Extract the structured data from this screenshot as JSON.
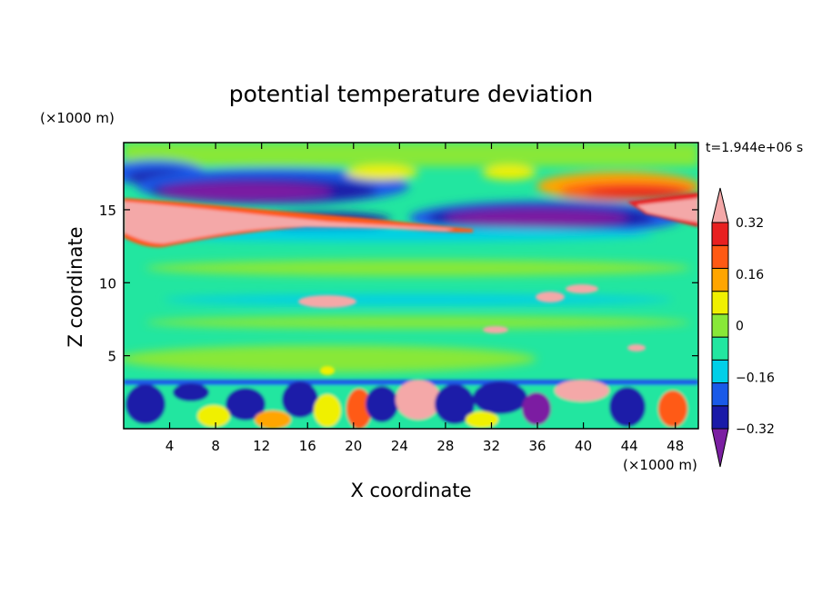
{
  "chart_data": {
    "type": "heatmap",
    "title": "potential temperature deviation",
    "time_label": "t=1.944e+06 s",
    "xlabel": "X coordinate",
    "ylabel": "Z coordinate",
    "x_unit": "(×1000 m)",
    "y_unit": "(×1000 m)",
    "xlim": [
      0,
      50
    ],
    "ylim": [
      0,
      19.6
    ],
    "x_ticks": [
      4,
      8,
      12,
      16,
      20,
      24,
      28,
      32,
      36,
      40,
      44,
      48
    ],
    "y_ticks": [
      5,
      10,
      15
    ],
    "colorbar": {
      "levels": [
        -0.4,
        -0.32,
        -0.24,
        -0.16,
        -0.08,
        0,
        0.08,
        0.16,
        0.24,
        0.32,
        0.4
      ],
      "tick_values": [
        0.32,
        0.16,
        0,
        -0.16,
        -0.32
      ],
      "tick_labels": [
        "0.32",
        "0.16",
        "0",
        "−0.16",
        "−0.32"
      ],
      "colors": [
        "#7b1fa2",
        "#1a1aa8",
        "#1a5ae8",
        "#00cfe8",
        "#22e6a0",
        "#88e838",
        "#f0f000",
        "#ffa500",
        "#ff5a14",
        "#e82020",
        "#f4a8a8"
      ]
    },
    "field_bands": [
      {
        "z": [
          0,
          3.5
        ],
        "pattern": "turbulent boundary layer",
        "value_range": [
          -0.4,
          0.4
        ]
      },
      {
        "z": [
          3.5,
          12
        ],
        "pattern": "near zero, weak banding",
        "value_range": [
          -0.08,
          0.08
        ]
      },
      {
        "z": [
          12,
          15
        ],
        "pattern": "positive band descending to the right",
        "value": 0.4
      },
      {
        "z": [
          13.5,
          17
        ],
        "pattern": "strong negative lobes",
        "value": -0.4
      },
      {
        "z": [
          16,
          19.6
        ],
        "pattern": "mixed positive and negative near top",
        "value_range": [
          -0.24,
          0.4
        ]
      }
    ]
  }
}
